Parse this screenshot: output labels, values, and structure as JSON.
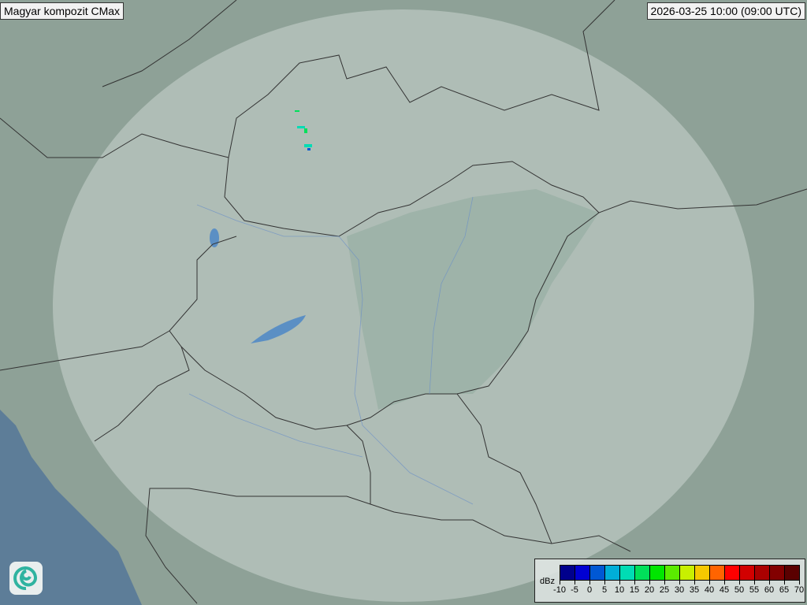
{
  "header": {
    "title": "Magyar kompozit  CMax",
    "timestamp": "2026-03-25 10:00 (09:00 UTC)"
  },
  "legend": {
    "unit": "dBz",
    "ticks": [
      "-10",
      "-5",
      "0",
      "5",
      "10",
      "15",
      "20",
      "25",
      "30",
      "35",
      "40",
      "45",
      "50",
      "55",
      "60",
      "65",
      "70"
    ],
    "colors": [
      "#00008c",
      "#0000d2",
      "#0058d4",
      "#00aed8",
      "#00dcb4",
      "#00e05a",
      "#00e600",
      "#5aeb00",
      "#c8f000",
      "#f5c800",
      "#ff6400",
      "#ff0000",
      "#d20000",
      "#aa0000",
      "#820000",
      "#5a0000"
    ]
  },
  "map": {
    "land_color": "#8ea197",
    "radar_coverage_color": "#d6e0db",
    "sea_color": "#5d7d98",
    "water_color": "#5b8fc4",
    "border_color": "#333333",
    "logo_icon": "swirl-logo-icon"
  }
}
